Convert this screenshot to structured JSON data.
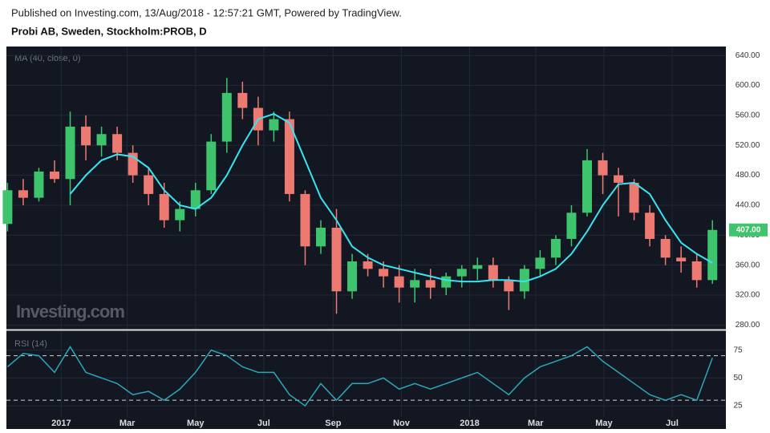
{
  "header": {
    "published": "Published on Investing.com, 13/Aug/2018 - 12:57:21 GMT, Powered by TradingView.",
    "title": "Probi AB, Sweden, Stockholm:PROB, D"
  },
  "watermark": "Investing.com",
  "chart_data": [
    {
      "type": "candlestick",
      "label": "MA (40, close, 0)",
      "x": [
        "2016-11-14",
        "2016-11-28",
        "2016-12-12",
        "2016-12-26",
        "2017-01-09",
        "2017-01-23",
        "2017-02-06",
        "2017-02-20",
        "2017-03-06",
        "2017-03-20",
        "2017-04-03",
        "2017-04-17",
        "2017-05-01",
        "2017-05-15",
        "2017-05-29",
        "2017-06-12",
        "2017-06-26",
        "2017-07-10",
        "2017-07-24",
        "2017-08-07",
        "2017-08-21",
        "2017-09-04",
        "2017-09-18",
        "2017-10-02",
        "2017-10-16",
        "2017-10-30",
        "2017-11-13",
        "2017-11-27",
        "2017-12-11",
        "2017-12-25",
        "2018-01-08",
        "2018-01-22",
        "2018-02-05",
        "2018-02-19",
        "2018-03-05",
        "2018-03-19",
        "2018-04-02",
        "2018-04-16",
        "2018-04-30",
        "2018-05-14",
        "2018-05-28",
        "2018-06-11",
        "2018-06-25",
        "2018-07-09",
        "2018-07-23",
        "2018-08-06"
      ],
      "open": [
        415,
        460,
        450,
        485,
        475,
        545,
        520,
        535,
        510,
        480,
        455,
        420,
        435,
        460,
        525,
        590,
        570,
        540,
        555,
        455,
        385,
        410,
        325,
        365,
        355,
        345,
        330,
        340,
        330,
        345,
        355,
        360,
        340,
        325,
        355,
        370,
        395,
        430,
        500,
        480,
        470,
        430,
        395,
        370,
        365,
        340
      ],
      "high": [
        470,
        475,
        490,
        500,
        565,
        560,
        545,
        545,
        520,
        490,
        470,
        445,
        470,
        535,
        610,
        605,
        585,
        565,
        565,
        460,
        420,
        435,
        375,
        375,
        365,
        360,
        355,
        355,
        350,
        360,
        370,
        370,
        345,
        360,
        380,
        400,
        440,
        515,
        510,
        490,
        475,
        440,
        400,
        385,
        375,
        420
      ],
      "low": [
        405,
        440,
        445,
        470,
        440,
        500,
        505,
        500,
        470,
        440,
        410,
        405,
        425,
        455,
        510,
        555,
        520,
        525,
        445,
        360,
        375,
        295,
        315,
        345,
        330,
        310,
        310,
        315,
        320,
        330,
        340,
        330,
        300,
        315,
        345,
        360,
        385,
        425,
        455,
        425,
        420,
        385,
        360,
        350,
        330,
        335
      ],
      "close": [
        460,
        450,
        485,
        475,
        545,
        520,
        535,
        510,
        480,
        455,
        420,
        435,
        460,
        525,
        590,
        570,
        540,
        555,
        455,
        385,
        410,
        325,
        365,
        355,
        345,
        330,
        340,
        330,
        345,
        355,
        360,
        340,
        325,
        355,
        370,
        395,
        430,
        500,
        480,
        470,
        430,
        395,
        370,
        365,
        340,
        407
      ],
      "up_color": "#3ec46d",
      "down_color": "#ec7a72",
      "ma": {
        "color": "#38e4ef",
        "values": [
          null,
          null,
          null,
          null,
          455,
          480,
          500,
          508,
          505,
          490,
          460,
          440,
          435,
          450,
          480,
          520,
          555,
          562,
          550,
          500,
          450,
          420,
          385,
          370,
          360,
          355,
          350,
          345,
          340,
          338,
          338,
          340,
          340,
          338,
          345,
          355,
          375,
          405,
          440,
          468,
          470,
          455,
          420,
          390,
          375,
          363
        ]
      },
      "last_price_label": "407.00",
      "xlim": [
        "2016-11-13",
        "2018-08-13"
      ],
      "xticks": [
        {
          "value": "2017-01-01",
          "label": "2017"
        },
        {
          "value": "2017-03-01",
          "label": "Mar"
        },
        {
          "value": "2017-05-01",
          "label": "May"
        },
        {
          "value": "2017-07-01",
          "label": "Jul"
        },
        {
          "value": "2017-09-01",
          "label": "Sep"
        },
        {
          "value": "2017-11-01",
          "label": "Nov"
        },
        {
          "value": "2018-01-01",
          "label": "2018"
        },
        {
          "value": "2018-03-01",
          "label": "Mar"
        },
        {
          "value": "2018-05-01",
          "label": "May"
        },
        {
          "value": "2018-07-01",
          "label": "Jul"
        }
      ],
      "ylim": [
        275,
        652
      ],
      "yticks": [
        {
          "value": 280,
          "label": "280.00"
        },
        {
          "value": 320,
          "label": "320.00"
        },
        {
          "value": 360,
          "label": "360.00"
        },
        {
          "value": 400,
          "label": "400.00"
        },
        {
          "value": 440,
          "label": "440.00"
        },
        {
          "value": 480,
          "label": "480.00"
        },
        {
          "value": 520,
          "label": "520.00"
        },
        {
          "value": 560,
          "label": "560.00"
        },
        {
          "value": 600,
          "label": "600.00"
        },
        {
          "value": 640,
          "label": "640.00"
        }
      ],
      "grid": true
    },
    {
      "type": "line",
      "label": "RSI (14)",
      "color": "#2aa8b4",
      "values": [
        60,
        72,
        70,
        55,
        78,
        55,
        50,
        45,
        35,
        38,
        30,
        40,
        55,
        75,
        70,
        60,
        55,
        55,
        35,
        25,
        45,
        30,
        45,
        45,
        50,
        40,
        45,
        40,
        45,
        50,
        55,
        45,
        35,
        50,
        60,
        65,
        70,
        78,
        65,
        55,
        45,
        35,
        30,
        35,
        30,
        68
      ],
      "bands": [
        30,
        70
      ],
      "ylim": [
        15,
        92
      ],
      "yticks": [
        25,
        50,
        75
      ],
      "grid": true
    }
  ]
}
